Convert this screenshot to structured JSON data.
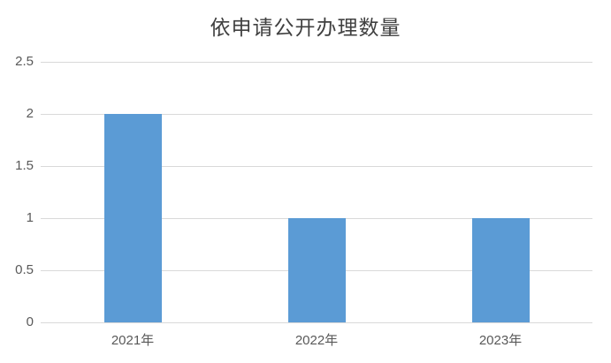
{
  "chart_data": {
    "type": "bar",
    "title": "依申请公开办理数量",
    "categories": [
      "2021年",
      "2022年",
      "2023年"
    ],
    "values": [
      2,
      1,
      1
    ],
    "xlabel": "",
    "ylabel": "",
    "ylim": [
      0,
      2.5
    ],
    "yticks": [
      0,
      0.5,
      1,
      1.5,
      2,
      2.5
    ],
    "ytick_labels": [
      "0",
      "0.5",
      "1",
      "1.5",
      "2",
      "2.5"
    ],
    "grid": true,
    "legend_position": "none",
    "bar_color": "#5B9BD5",
    "gridline_color": "#D9D9D9",
    "title_color": "#404040",
    "tick_label_color": "#595959",
    "background_color": "#FFFFFF"
  }
}
